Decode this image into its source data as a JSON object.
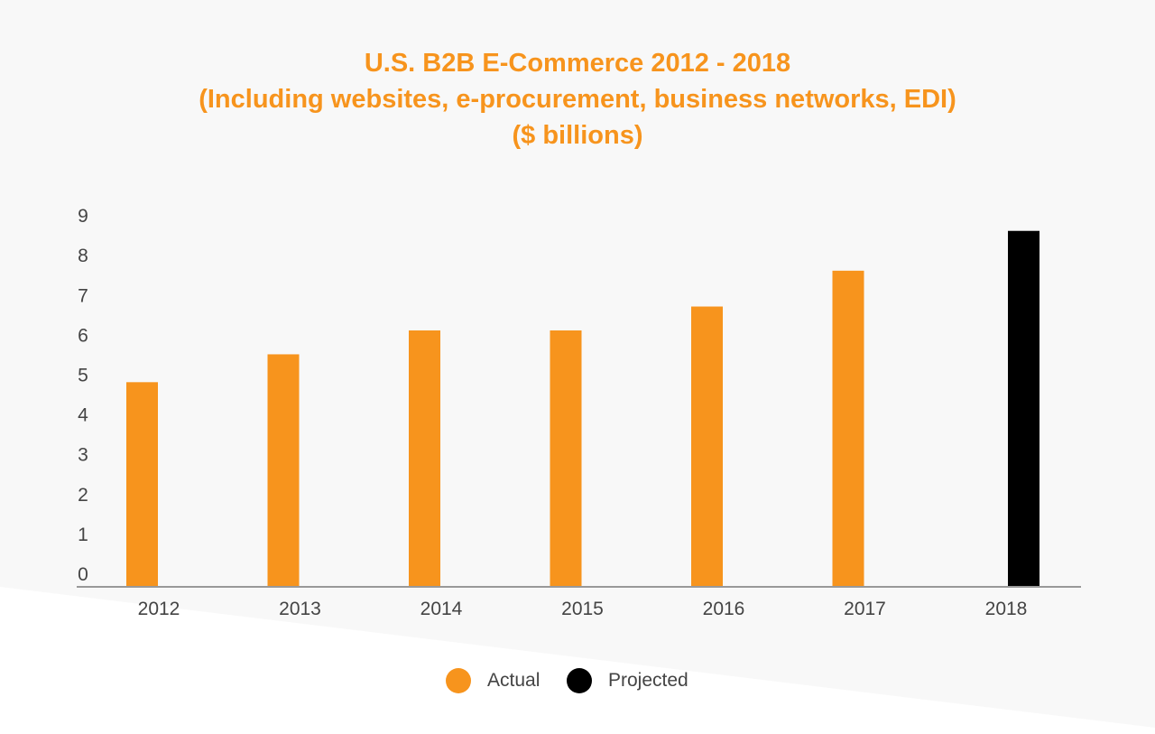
{
  "chart_data": {
    "type": "bar",
    "title": "U.S. B2B E-Commerce 2012 - 2018",
    "subtitle": "(Including websites, e-procurement, business networks, EDI)",
    "unit_line": "($ billions)",
    "xlabel": "",
    "ylabel": "",
    "categories": [
      "2012",
      "2013",
      "2014",
      "2015",
      "2016",
      "2017",
      "2018"
    ],
    "series": [
      {
        "name": "Actual",
        "color": "#f7941d",
        "values": [
          4.8,
          5.5,
          6.1,
          6.1,
          6.7,
          7.6,
          null
        ]
      },
      {
        "name": "Projected",
        "color": "#000000",
        "values": [
          null,
          null,
          null,
          null,
          null,
          null,
          8.6
        ]
      }
    ],
    "yticks": [
      "0",
      "1",
      "2",
      "3",
      "4",
      "5",
      "6",
      "7",
      "8",
      "9"
    ],
    "ylim": [
      0,
      9
    ],
    "grid": false,
    "legend_position": "bottom"
  }
}
